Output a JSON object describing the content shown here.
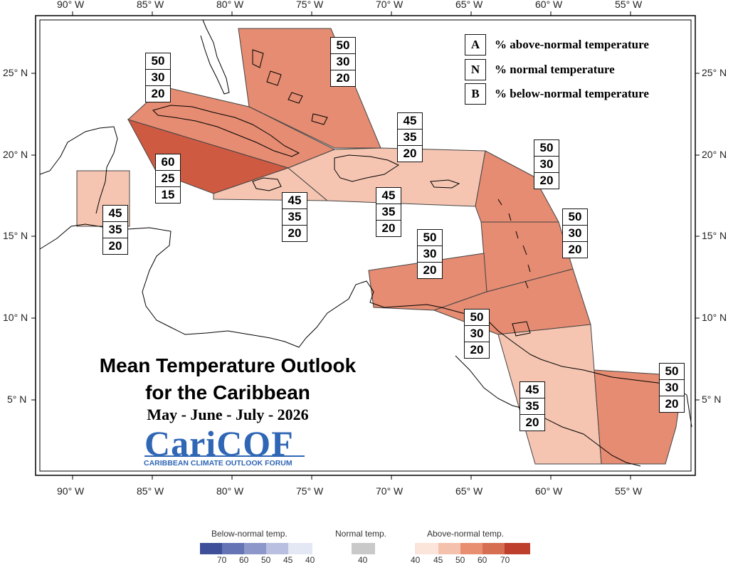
{
  "axes": {
    "lon_labels": [
      "90° W",
      "85° W",
      "80° W",
      "75° W",
      "70° W",
      "65° W",
      "60° W",
      "55° W"
    ],
    "lat_labels": [
      "25° N",
      "20° N",
      "15° N",
      "10° N",
      "5° N"
    ]
  },
  "legend": [
    {
      "key": "A",
      "text": "% above-normal temperature"
    },
    {
      "key": "N",
      "text": "% normal temperature"
    },
    {
      "key": "B",
      "text": "% below-normal temperature"
    }
  ],
  "regions": [
    {
      "id": "bahamas",
      "values": [
        "50",
        "30",
        "20"
      ]
    },
    {
      "id": "cuba-west",
      "values": [
        "50",
        "30",
        "20"
      ]
    },
    {
      "id": "cuba-cayman",
      "values": [
        "60",
        "25",
        "15"
      ]
    },
    {
      "id": "belize",
      "values": [
        "45",
        "35",
        "20"
      ]
    },
    {
      "id": "jamaica",
      "values": [
        "45",
        "35",
        "20"
      ]
    },
    {
      "id": "hispaniola-pr",
      "values": [
        "45",
        "35",
        "20"
      ]
    },
    {
      "id": "greater-antilles-east",
      "values": [
        "45",
        "35",
        "20"
      ]
    },
    {
      "id": "leeward-islands",
      "values": [
        "50",
        "30",
        "20"
      ]
    },
    {
      "id": "windward-islands",
      "values": [
        "50",
        "30",
        "20"
      ]
    },
    {
      "id": "abc-islands",
      "values": [
        "50",
        "30",
        "20"
      ]
    },
    {
      "id": "trinidad-tobago",
      "values": [
        "50",
        "30",
        "20"
      ]
    },
    {
      "id": "guyana",
      "values": [
        "45",
        "35",
        "20"
      ]
    },
    {
      "id": "suriname-guiana",
      "values": [
        "50",
        "30",
        "20"
      ]
    }
  ],
  "title": {
    "line1": "Mean Temperature Outlook",
    "line2": "for the Caribbean",
    "line3": "May - June - July - 2026"
  },
  "logo": {
    "main": "CariCOF",
    "sub": "CARIBBEAN CLIMATE OUTLOOK FORUM"
  },
  "colorbar": {
    "below_title": "Below-normal temp.",
    "normal_title": "Normal temp.",
    "above_title": "Above-normal temp.",
    "below_ticks": [
      "70",
      "60",
      "50",
      "45",
      "40"
    ],
    "normal_ticks": [
      "40"
    ],
    "above_ticks": [
      "40",
      "45",
      "50",
      "60",
      "70"
    ],
    "below_colors": [
      "#3f4f9a",
      "#6474b5",
      "#8d97c9",
      "#b8bfe0",
      "#e4e7f4"
    ],
    "normal_color": "#c9c9c9",
    "above_colors": [
      "#fbe4da",
      "#f4c1ad",
      "#e88f72",
      "#d66e52",
      "#bd3f2c"
    ]
  },
  "colors": {
    "prob_45": "#f5c5b2",
    "prob_50": "#e58c72",
    "prob_60": "#cf5a42",
    "land_outline": "#000000"
  }
}
